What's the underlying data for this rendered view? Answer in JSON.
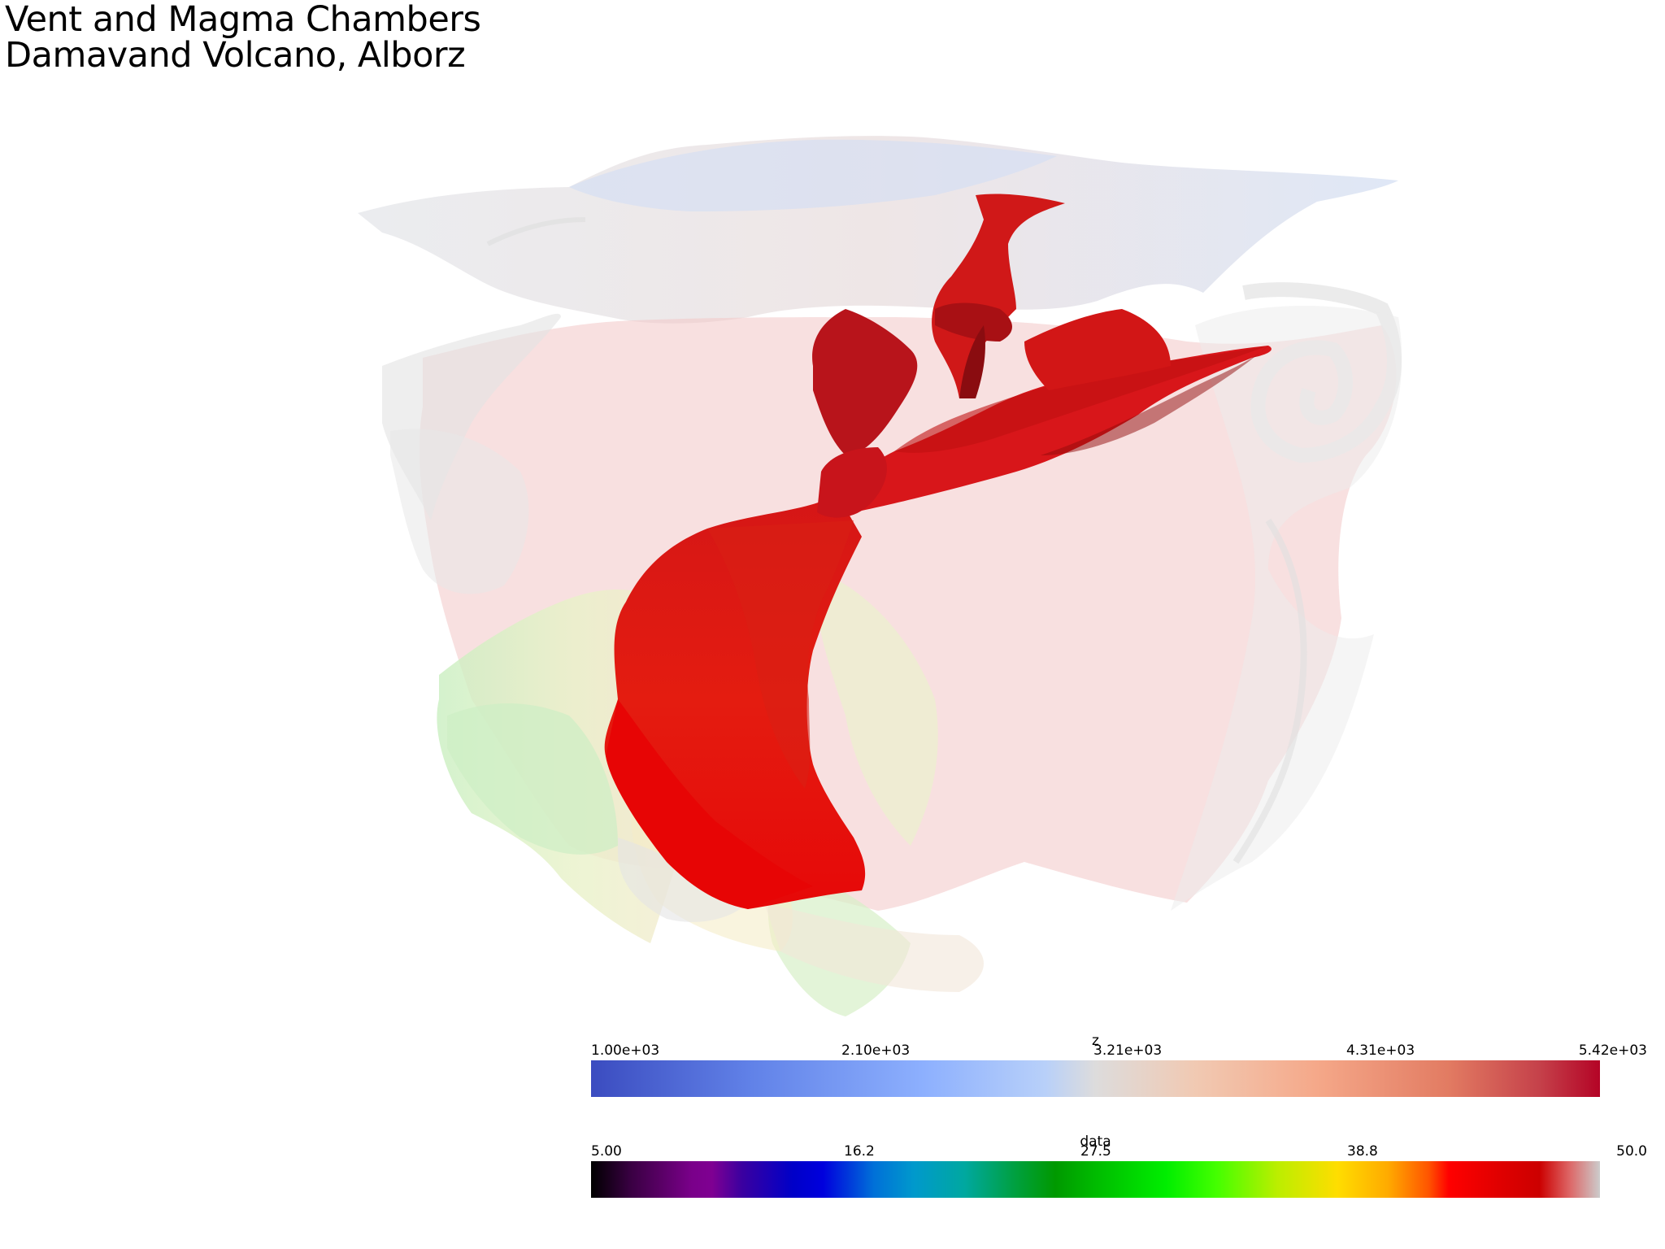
{
  "title": {
    "line1": "Vent and Magma Chambers",
    "line2": "Damavand Volcano, Alborz"
  },
  "colorbars": {
    "z": {
      "title": "z",
      "ticks": [
        "1.00e+03",
        "2.10e+03",
        "3.21e+03",
        "4.31e+03",
        "5.42e+03"
      ],
      "colormap": "coolwarm",
      "colors": [
        "#3b4cc0",
        "#dddcdc",
        "#b40426"
      ]
    },
    "data": {
      "title": "data",
      "ticks": [
        "5.00",
        "16.2",
        "27.5",
        "38.8",
        "50.0"
      ],
      "colormap": "rainbow",
      "colors": [
        "#000000",
        "#7f0092",
        "#0000dd",
        "#00bb00",
        "#ffdd00",
        "#ff0000",
        "#cccccc"
      ]
    }
  },
  "scene": {
    "main_body_color": "#e01010",
    "surface_colors": [
      "#f2c9c9",
      "#d8e2f4",
      "#e8e8e8",
      "#c8f0c0",
      "#fbe8b0"
    ]
  }
}
